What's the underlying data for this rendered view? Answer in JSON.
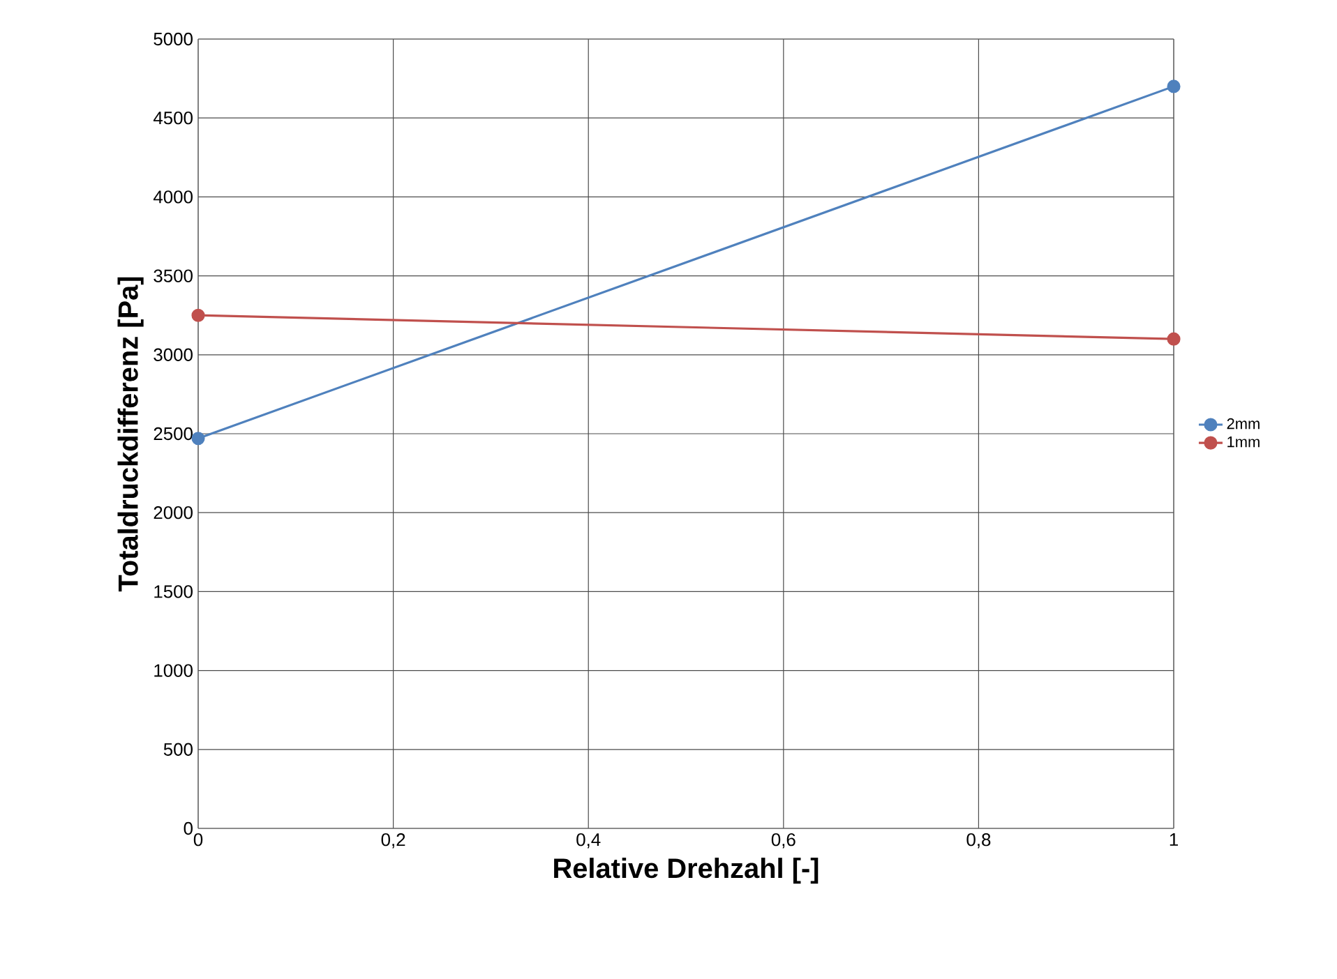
{
  "chart_data": {
    "type": "line",
    "xlabel": "Relative Drehzahl [-]",
    "ylabel": "Totaldruckdifferenz [Pa]",
    "x": [
      0,
      1
    ],
    "series": [
      {
        "name": "2mm",
        "color": "#4f81bd",
        "values": [
          2470,
          4700
        ]
      },
      {
        "name": "1mm",
        "color": "#c0504d",
        "values": [
          3250,
          3100
        ]
      }
    ],
    "xlim": [
      0,
      1
    ],
    "ylim": [
      0,
      5000
    ],
    "xticks": [
      0,
      {
        "value": 0.2,
        "label": "0,2"
      },
      {
        "value": 0.4,
        "label": "0,4"
      },
      {
        "value": 0.6,
        "label": "0,6"
      },
      {
        "value": 0.8,
        "label": "0,8"
      },
      1
    ],
    "yticks": [
      0,
      500,
      1000,
      1500,
      2000,
      2500,
      3000,
      3500,
      4000,
      4500,
      5000
    ],
    "grid": true,
    "legend": "right",
    "marker": "circle",
    "line_style": "solid"
  }
}
